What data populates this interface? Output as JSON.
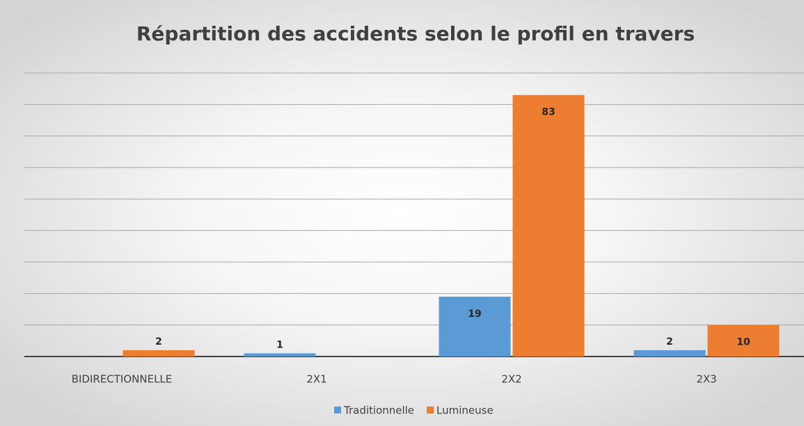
{
  "chart_data": {
    "type": "bar",
    "title": "Répartition des accidents selon le profil en travers",
    "categories": [
      "BIDIRECTIONNELLE",
      "2X1",
      "2X2",
      "2X3"
    ],
    "series": [
      {
        "name": "Traditionnelle",
        "color": "#5b9bd5",
        "values": [
          null,
          1,
          19,
          2
        ]
      },
      {
        "name": "Lumineuse",
        "color": "#ed7d31",
        "values": [
          2,
          null,
          83,
          10
        ]
      }
    ],
    "ylim": [
      0,
      90
    ],
    "yticks": [
      0,
      10,
      20,
      30,
      40,
      50,
      60,
      70,
      80,
      90
    ],
    "grid": true,
    "legend": "bottom"
  }
}
